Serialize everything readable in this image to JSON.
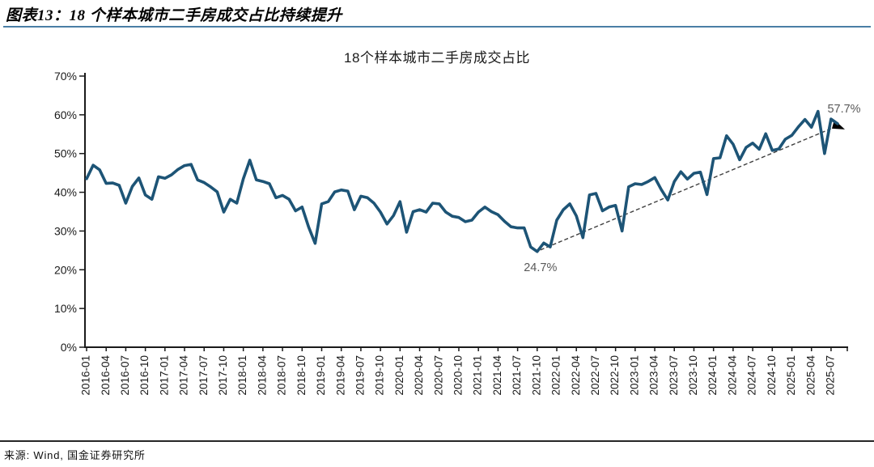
{
  "header": {
    "title": "图表13：18 个样本城市二手房成交占比持续提升"
  },
  "footer": {
    "source": "来源: Wind, 国金证券研究所"
  },
  "colors": {
    "header_rule": "#4A7EA5",
    "footer_rule": "#262626",
    "series": "#1D5476",
    "trend": "#404040",
    "arrowhead": "#000000",
    "annotation": "#595959",
    "axis": "#1A1A1A",
    "tick_text": "#1A1A1A"
  },
  "chart_data": {
    "type": "line",
    "title": "18个样本城市二手房成交占比",
    "unit": "%",
    "grid": false,
    "legend": "none",
    "ylim": [
      0,
      70
    ],
    "y_ticks": [
      0,
      10,
      20,
      30,
      40,
      50,
      60,
      70
    ],
    "x": [
      "2016-01",
      "2016-02",
      "2016-03",
      "2016-04",
      "2016-05",
      "2016-06",
      "2016-07",
      "2016-08",
      "2016-09",
      "2016-10",
      "2016-11",
      "2016-12",
      "2017-01",
      "2017-02",
      "2017-03",
      "2017-04",
      "2017-05",
      "2017-06",
      "2017-07",
      "2017-08",
      "2017-09",
      "2017-10",
      "2017-11",
      "2017-12",
      "2018-01",
      "2018-02",
      "2018-03",
      "2018-04",
      "2018-05",
      "2018-06",
      "2018-07",
      "2018-08",
      "2018-09",
      "2018-10",
      "2018-11",
      "2018-12",
      "2019-01",
      "2019-02",
      "2019-03",
      "2019-04",
      "2019-05",
      "2019-06",
      "2019-07",
      "2019-08",
      "2019-09",
      "2019-10",
      "2019-11",
      "2019-12",
      "2020-01",
      "2020-02",
      "2020-03",
      "2020-04",
      "2020-05",
      "2020-06",
      "2020-07",
      "2020-08",
      "2020-09",
      "2020-10",
      "2020-11",
      "2020-12",
      "2021-01",
      "2021-02",
      "2021-03",
      "2021-04",
      "2021-05",
      "2021-06",
      "2021-07",
      "2021-08",
      "2021-09",
      "2021-10",
      "2021-11",
      "2021-12",
      "2022-01",
      "2022-02",
      "2022-03",
      "2022-04",
      "2022-05",
      "2022-06",
      "2022-07",
      "2022-08",
      "2022-09",
      "2022-10",
      "2022-11",
      "2022-12",
      "2023-01",
      "2023-02",
      "2023-03",
      "2023-04",
      "2023-05",
      "2023-06",
      "2023-07",
      "2023-08",
      "2023-09",
      "2023-10",
      "2023-11",
      "2023-12",
      "2024-01",
      "2024-02",
      "2024-03",
      "2024-04",
      "2024-05",
      "2024-06",
      "2024-07",
      "2024-08",
      "2024-09",
      "2024-10",
      "2024-11",
      "2024-12",
      "2025-01",
      "2025-02",
      "2025-03",
      "2025-04",
      "2025-05",
      "2025-06",
      "2025-07",
      "2025-08"
    ],
    "values": [
      43.5,
      47.0,
      45.8,
      42.3,
      42.4,
      41.8,
      37.2,
      41.5,
      43.7,
      39.3,
      38.2,
      44.0,
      43.6,
      44.5,
      45.9,
      46.9,
      47.2,
      43.2,
      42.5,
      41.4,
      40.1,
      34.9,
      38.2,
      37.2,
      43.5,
      48.3,
      43.2,
      42.8,
      42.2,
      38.6,
      39.2,
      38.2,
      35.2,
      36.2,
      31.0,
      26.8,
      37.0,
      37.6,
      40.1,
      40.6,
      40.3,
      35.5,
      39.0,
      38.6,
      37.2,
      34.9,
      31.8,
      34.0,
      37.6,
      29.7,
      35.0,
      35.5,
      34.9,
      37.2,
      37.0,
      34.9,
      33.8,
      33.5,
      32.4,
      32.8,
      34.9,
      36.2,
      35.0,
      34.2,
      32.5,
      31.1,
      30.8,
      30.8,
      25.9,
      24.7,
      26.9,
      25.9,
      32.8,
      35.5,
      37.0,
      33.9,
      28.3,
      39.3,
      39.7,
      35.2,
      36.2,
      36.6,
      30.0,
      41.4,
      42.2,
      42.0,
      42.8,
      43.8,
      40.7,
      38.0,
      42.8,
      45.3,
      43.4,
      44.9,
      45.2,
      39.4,
      48.7,
      48.9,
      54.6,
      52.4,
      48.4,
      51.6,
      52.7,
      51.1,
      55.1,
      50.8,
      51.2,
      53.7,
      54.7,
      56.9,
      58.8,
      56.8,
      60.9,
      50.0,
      58.9,
      57.7
    ],
    "x_tick_labels": [
      "2016-01",
      "2016-04",
      "2016-07",
      "2016-10",
      "2017-01",
      "2017-04",
      "2017-07",
      "2017-10",
      "2018-01",
      "2018-04",
      "2018-07",
      "2018-10",
      "2019-01",
      "2019-04",
      "2019-07",
      "2019-10",
      "2020-01",
      "2020-04",
      "2020-07",
      "2020-10",
      "2021-01",
      "2021-04",
      "2021-07",
      "2021-10",
      "2022-01",
      "2022-04",
      "2022-07",
      "2022-10",
      "2023-01",
      "2023-04",
      "2023-07",
      "2023-10",
      "2024-01",
      "2024-04",
      "2024-07",
      "2024-10",
      "2025-01",
      "2025-04",
      "2025-07"
    ],
    "annotations": [
      {
        "text": "24.7%",
        "x": "2021-10",
        "value": 24.7,
        "position": "below"
      },
      {
        "text": "57.7%",
        "x": "2025-08",
        "value": 57.7,
        "position": "above"
      }
    ],
    "trend_arrow": {
      "style": "dashed",
      "from_x": "2021-10",
      "from_value": 24.7,
      "to_x": "2025-08",
      "to_value": 57.7
    }
  }
}
